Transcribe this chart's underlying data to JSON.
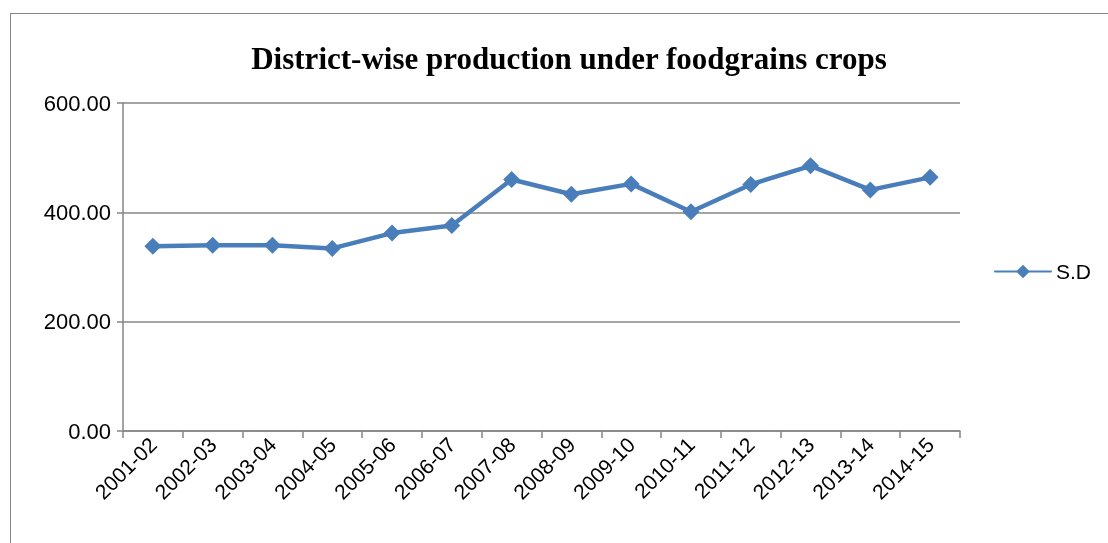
{
  "chart_data": {
    "type": "line",
    "title": "District-wise production under foodgrains crops",
    "categories": [
      "2001-02",
      "2002-03",
      "2003-04",
      "2004-05",
      "2005-06",
      "2006-07",
      "2007-08",
      "2008-09",
      "2009-10",
      "2010-11",
      "2011-12",
      "2012-13",
      "2013-14",
      "2014-15"
    ],
    "series": [
      {
        "name": "S.D",
        "color": "#4a7ebb",
        "values": [
          338,
          340,
          340,
          334,
          362,
          376,
          460,
          433,
          452,
          401,
          451,
          485,
          441,
          464
        ]
      }
    ],
    "ylim": [
      0,
      600
    ],
    "yticks": [
      {
        "value": 0,
        "label": "0.00"
      },
      {
        "value": 200,
        "label": "200.00"
      },
      {
        "value": 400,
        "label": "400.00"
      },
      {
        "value": 600,
        "label": "600.00"
      }
    ],
    "grid": "y",
    "legend": "right",
    "marker": "diamond",
    "line_style": "solid"
  }
}
